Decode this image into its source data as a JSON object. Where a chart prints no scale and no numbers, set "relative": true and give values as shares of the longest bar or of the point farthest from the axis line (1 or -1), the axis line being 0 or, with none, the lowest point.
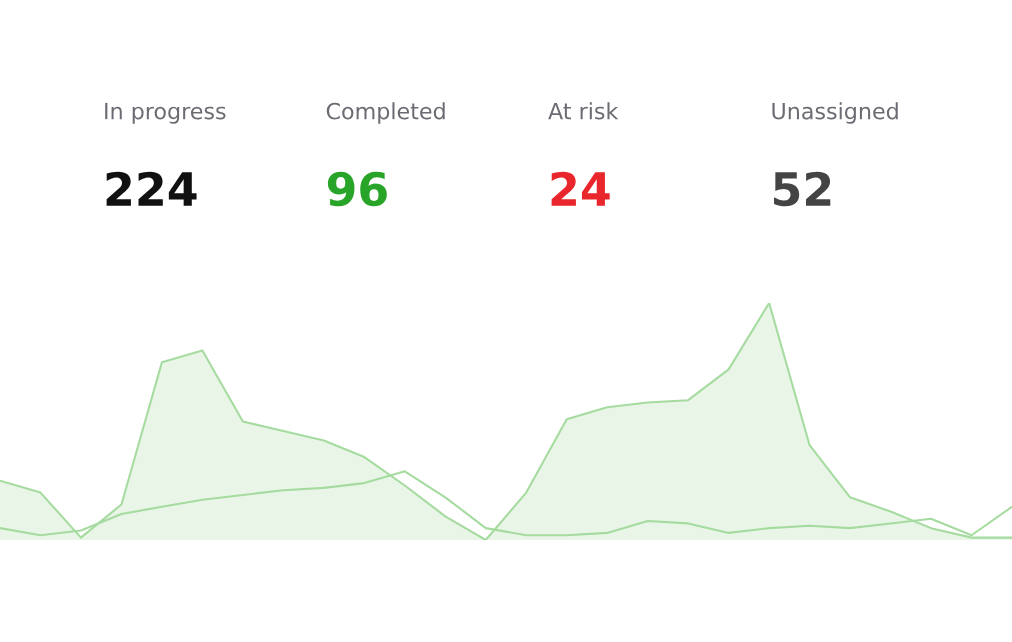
{
  "chart_data": [
    {
      "type": "other",
      "data_labels": true,
      "categories": [
        "In progress",
        "Completed",
        "At risk",
        "Unassigned"
      ],
      "values": [
        224,
        96,
        24,
        52
      ],
      "colors": [
        "#111111",
        "#28a428",
        "#e8262b",
        "#444444"
      ]
    },
    {
      "type": "area",
      "relative": true,
      "categories": [
        null,
        null,
        null,
        null,
        null,
        null,
        null,
        null,
        null,
        null,
        null,
        null,
        null,
        null,
        null,
        null,
        null,
        null,
        null,
        null,
        null,
        null,
        null,
        null,
        null,
        null
      ],
      "series": [
        {
          "color": "#a6dba0",
          "values": [
            0.25,
            0.2,
            0.01,
            0.15,
            0.75,
            0.8,
            0.5,
            0.46,
            0.42,
            0.35,
            0.23,
            0.1,
            0.0,
            0.2,
            0.51,
            0.56,
            0.58,
            0.59,
            0.72,
            1.0,
            0.4,
            0.18,
            0.12,
            0.05,
            0.01,
            0.01
          ]
        },
        {
          "type": "line",
          "color": "#a6dba0",
          "values": [
            0.05,
            0.02,
            0.04,
            0.11,
            0.14,
            0.17,
            0.19,
            0.21,
            0.22,
            0.24,
            0.29,
            0.18,
            0.05,
            0.02,
            0.02,
            0.03,
            0.08,
            0.07,
            0.03,
            0.05,
            0.06,
            0.05,
            0.07,
            0.09,
            0.02,
            0.14
          ]
        }
      ]
    }
  ]
}
